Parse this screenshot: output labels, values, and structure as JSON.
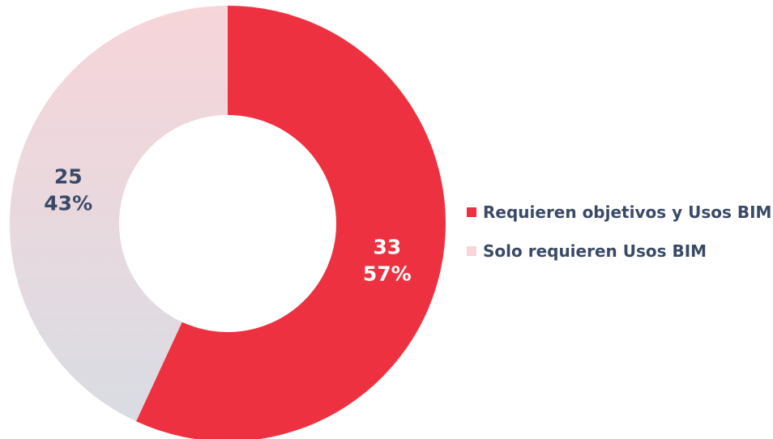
{
  "chart_data": {
    "type": "pie",
    "variant": "donut",
    "slices": [
      {
        "name": "Requieren objetivos y Usos BIM",
        "value": 33,
        "percent_label": "57%",
        "value_label": "33",
        "color": "#ee3140",
        "label_color": "#ffffff"
      },
      {
        "name": "Solo requieren Usos BIM",
        "value": 25,
        "percent_label": "43%",
        "value_label": "25",
        "color": "#f7d5d9",
        "gradient_end": "#d9dce3",
        "label_color": "#3a4a66"
      }
    ],
    "start_angle": "12 o'clock",
    "direction": "clockwise",
    "legend": "right"
  }
}
